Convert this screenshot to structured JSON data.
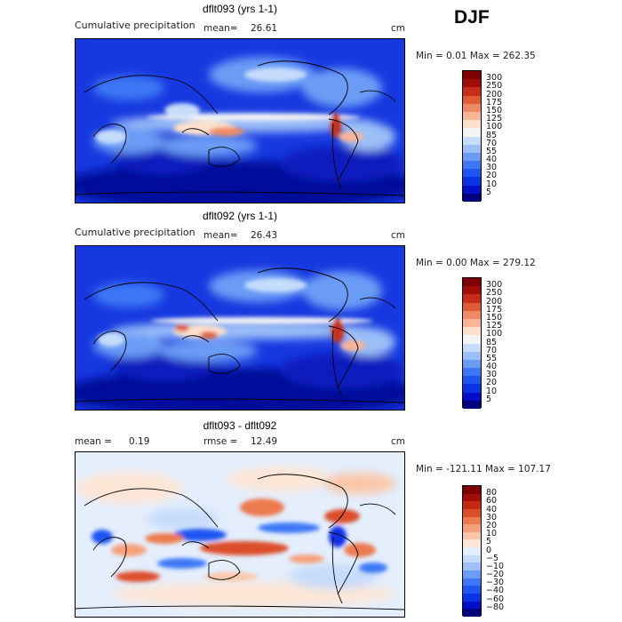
{
  "season": "DJF",
  "palette_precip": [
    "#00007f",
    "#0010c8",
    "#0a33e8",
    "#1e55f0",
    "#3c78f5",
    "#6a9cf6",
    "#9cbff8",
    "#c6dcfb",
    "#f4f4f4",
    "#fde0cc",
    "#f9b596",
    "#f08a62",
    "#e05a36",
    "#c72d18",
    "#a00c06",
    "#7f0000"
  ],
  "palette_diff": [
    "#00007f",
    "#0010c8",
    "#0a33e8",
    "#1e55f0",
    "#3c78f5",
    "#6a9cf6",
    "#9cbff8",
    "#c6dcfb",
    "#e4eefd",
    "#fde6d6",
    "#fbc6a8",
    "#f6a07a",
    "#ec7a50",
    "#dc4e2a",
    "#c42812",
    "#a00c06",
    "#7f0000"
  ],
  "panels": [
    {
      "title": "dflt093 (yrs 1-1)",
      "subtitle": "Cumulative precipitation",
      "mean_label": "mean=",
      "mean_value": "26.61",
      "unit": "cm",
      "minmax": "Min =    0.01 Max = 262.35",
      "colorbar_levels": [
        "300",
        "250",
        "200",
        "175",
        "150",
        "125",
        "100",
        "85",
        "70",
        "55",
        "40",
        "30",
        "20",
        "10",
        "5"
      ]
    },
    {
      "title": "dflt092 (yrs 1-1)",
      "subtitle": "Cumulative precipitation",
      "mean_label": "mean=",
      "mean_value": "26.43",
      "unit": "cm",
      "minmax": "Min =    0.00 Max = 279.12",
      "colorbar_levels": [
        "300",
        "250",
        "200",
        "175",
        "150",
        "125",
        "100",
        "85",
        "70",
        "55",
        "40",
        "30",
        "20",
        "10",
        "5"
      ]
    },
    {
      "title": "dflt093 - dflt092",
      "mean_label": "mean =",
      "mean_value": "0.19",
      "rmse_label": "rmse =",
      "rmse_value": "12.49",
      "unit": "cm",
      "minmax": "Min = -121.11 Max = 107.17",
      "colorbar_levels": [
        "80",
        "60",
        "40",
        "30",
        "20",
        "10",
        "5",
        "0",
        "−5",
        "−10",
        "−20",
        "−30",
        "−40",
        "−60",
        "−80"
      ]
    }
  ]
}
